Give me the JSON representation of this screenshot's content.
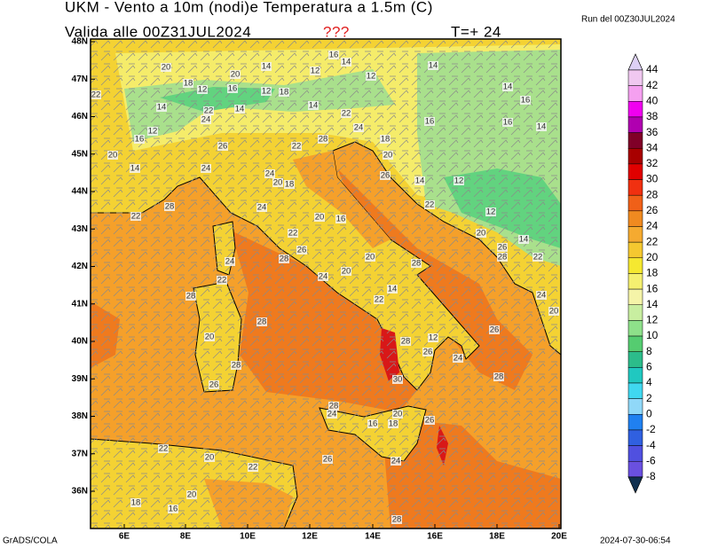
{
  "header": {
    "title": "UKM - Vento a 10m (nodi)e Temperatura a 1.5m (C)",
    "valid": "Valida alle 00Z31JUL2024",
    "warning": "???",
    "forecast": "T=+ 24",
    "run": "Run del 00Z30JUL2024"
  },
  "axes": {
    "x_labels": [
      "6E",
      "8E",
      "10E",
      "12E",
      "14E",
      "16E",
      "18E",
      "20E"
    ],
    "y_labels": [
      "48N",
      "47N",
      "46N",
      "45N",
      "44N",
      "43N",
      "42N",
      "41N",
      "40N",
      "39N",
      "38N",
      "37N",
      "36N"
    ]
  },
  "colorbar": {
    "labels": [
      "44",
      "42",
      "40",
      "38",
      "36",
      "34",
      "32",
      "30",
      "28",
      "26",
      "24",
      "22",
      "20",
      "18",
      "16",
      "14",
      "12",
      "10",
      "8",
      "6",
      "4",
      "2",
      "0",
      "-2",
      "-4",
      "-6",
      "-8"
    ]
  },
  "contour_labels": [
    "20",
    "14",
    "12",
    "16",
    "14",
    "12",
    "14",
    "14",
    "16",
    "18",
    "12",
    "20",
    "16",
    "12",
    "18",
    "22",
    "14",
    "22",
    "24",
    "14",
    "14",
    "22",
    "16",
    "16",
    "14",
    "24",
    "28",
    "18",
    "12",
    "16",
    "26",
    "22",
    "20",
    "14",
    "24",
    "20",
    "26",
    "24",
    "20",
    "18",
    "14",
    "12",
    "28",
    "22",
    "24",
    "22",
    "12",
    "20",
    "16",
    "22",
    "20",
    "14",
    "26",
    "28",
    "22",
    "24",
    "28",
    "26",
    "28",
    "20",
    "20",
    "24",
    "24",
    "20",
    "22",
    "28",
    "14",
    "22",
    "26",
    "28",
    "20",
    "28",
    "12",
    "26",
    "24",
    "28",
    "28",
    "30",
    "26",
    "28",
    "24",
    "20",
    "18",
    "16",
    "26",
    "26",
    "20",
    "22",
    "22",
    "24",
    "20",
    "18",
    "16",
    "28"
  ],
  "footer": {
    "left": "GrADS/COLA",
    "right": "2024-07-30-06:54"
  }
}
